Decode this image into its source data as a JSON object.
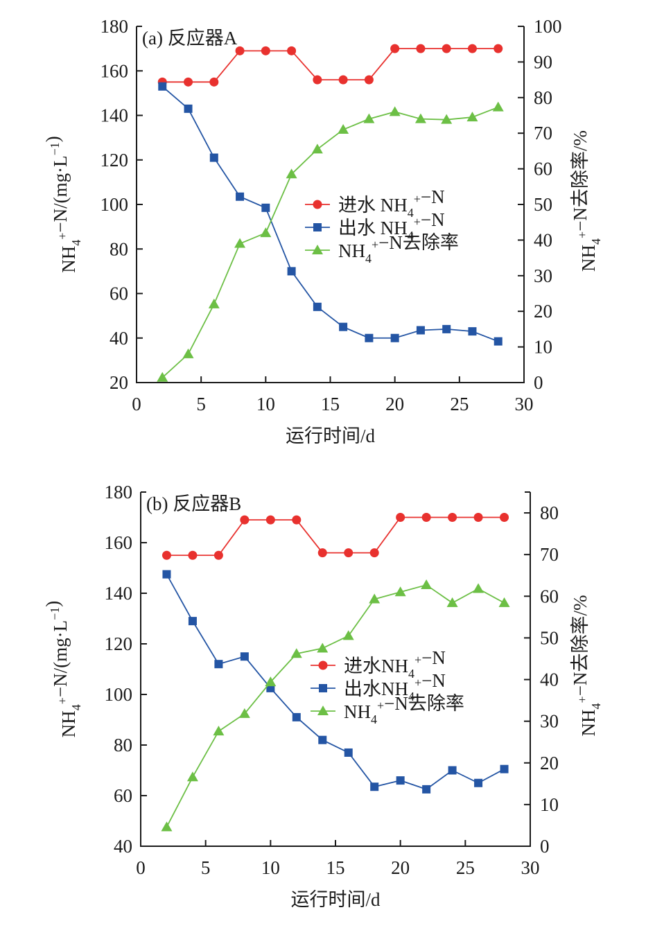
{
  "chart_data": [
    {
      "type": "line",
      "panel_title": "(a)  反应器A",
      "xlabel": "运行时间/d",
      "ylabel": "NH4+−N/(mg·L−1)",
      "y2label": "NH4+−N去除率/%",
      "xlim": [
        0,
        30
      ],
      "ylim": [
        20,
        180
      ],
      "y2lim": [
        0,
        100
      ],
      "xticks": [
        0,
        5,
        10,
        15,
        20,
        25,
        30
      ],
      "yticks": [
        20,
        40,
        60,
        80,
        100,
        120,
        140,
        160,
        180
      ],
      "y2ticks": [
        0,
        10,
        20,
        30,
        40,
        50,
        60,
        70,
        80,
        90,
        100
      ],
      "grid": false,
      "legend_position": "center-right",
      "x": [
        2,
        4,
        6,
        8,
        10,
        12,
        14,
        16,
        18,
        20,
        22,
        24,
        26,
        28
      ],
      "series": [
        {
          "name": "进水 NH4+−N",
          "axis": "left",
          "marker": "circle",
          "color": "#e8312e",
          "values": [
            155,
            155,
            155,
            169,
            169,
            169,
            156,
            156,
            156,
            170,
            170,
            170,
            170,
            170
          ]
        },
        {
          "name": "出水 NH4+−N",
          "axis": "left",
          "marker": "square",
          "color": "#2455a4",
          "values": [
            153,
            143,
            121,
            103.5,
            98.5,
            70,
            54,
            45,
            40,
            40,
            43.5,
            44,
            43,
            38.5
          ]
        },
        {
          "name": "NH4+−N去除率",
          "axis": "right",
          "marker": "triangle",
          "color": "#6cbf45",
          "values": [
            1.4,
            8,
            22,
            39,
            42,
            58.5,
            65.5,
            71,
            74,
            76,
            74,
            73.8,
            74.5,
            77.3
          ]
        }
      ]
    },
    {
      "type": "line",
      "panel_title": "(b)  反应器B",
      "xlabel": "运行时间/d",
      "ylabel": "NH4+−N/(mg·L−1)",
      "y2label": "NH4+−N去除率/%",
      "xlim": [
        0,
        30
      ],
      "ylim": [
        40,
        180
      ],
      "y2lim": [
        0,
        85
      ],
      "xticks": [
        0,
        5,
        10,
        15,
        20,
        25,
        30
      ],
      "yticks": [
        40,
        60,
        80,
        100,
        120,
        140,
        160,
        180
      ],
      "y2ticks": [
        0,
        10,
        20,
        30,
        40,
        50,
        60,
        70,
        80
      ],
      "grid": false,
      "legend_position": "center-right",
      "x": [
        2,
        4,
        6,
        8,
        10,
        12,
        14,
        16,
        18,
        20,
        22,
        24,
        26,
        28
      ],
      "series": [
        {
          "name": "进水NH4+−N",
          "axis": "left",
          "marker": "circle",
          "color": "#e8312e",
          "values": [
            155,
            155,
            155,
            169,
            169,
            169,
            156,
            156,
            156,
            170,
            170,
            170,
            170,
            170
          ]
        },
        {
          "name": "出水NH4+−N",
          "axis": "left",
          "marker": "square",
          "color": "#2455a4",
          "values": [
            147.5,
            129,
            112,
            115,
            102.5,
            91,
            82,
            77,
            63.5,
            66,
            62.5,
            70,
            65,
            70.5
          ]
        },
        {
          "name": "NH4+−N去除率",
          "axis": "right",
          "marker": "triangle",
          "color": "#6cbf45",
          "values": [
            4.6,
            16.6,
            27.6,
            31.8,
            39.4,
            46.2,
            47.5,
            50.5,
            59.3,
            61,
            62.7,
            58.4,
            61.8,
            58.4
          ]
        }
      ]
    }
  ]
}
